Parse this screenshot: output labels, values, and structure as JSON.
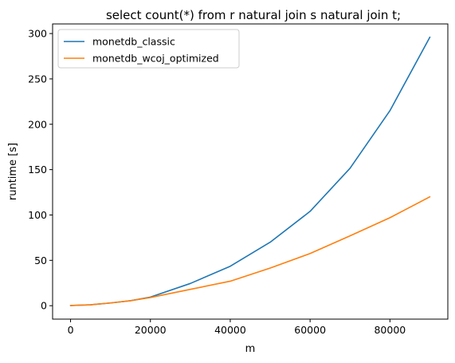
{
  "chart_data": {
    "type": "line",
    "title": "select count(*) from r natural join s natural join t;",
    "xlabel": "m",
    "ylabel": "runtime [s]",
    "xlim": [
      -4500,
      94500
    ],
    "ylim": [
      -14.8,
      310.6
    ],
    "x_ticks": [
      0,
      20000,
      40000,
      60000,
      80000
    ],
    "y_ticks": [
      0,
      50,
      100,
      150,
      200,
      250,
      300
    ],
    "grid": false,
    "legend_position": "top-left",
    "series": [
      {
        "name": "monetdb_classic",
        "color": "#1f77b4",
        "x": [
          0,
          5000,
          10000,
          15000,
          20000,
          30000,
          40000,
          50000,
          60000,
          70000,
          80000,
          90000
        ],
        "values": [
          0.2,
          1.0,
          3.0,
          5.5,
          9.5,
          24.5,
          43.5,
          70.0,
          104.0,
          151.5,
          215.0,
          296.0
        ]
      },
      {
        "name": "monetdb_wcoj_optimized",
        "color": "#ff7f0e",
        "x": [
          0,
          5000,
          10000,
          15000,
          20000,
          30000,
          40000,
          50000,
          60000,
          70000,
          80000,
          90000
        ],
        "values": [
          0.2,
          1.0,
          3.0,
          5.5,
          9.0,
          18.0,
          27.0,
          41.5,
          57.5,
          77.0,
          97.0,
          120.0
        ]
      }
    ]
  }
}
